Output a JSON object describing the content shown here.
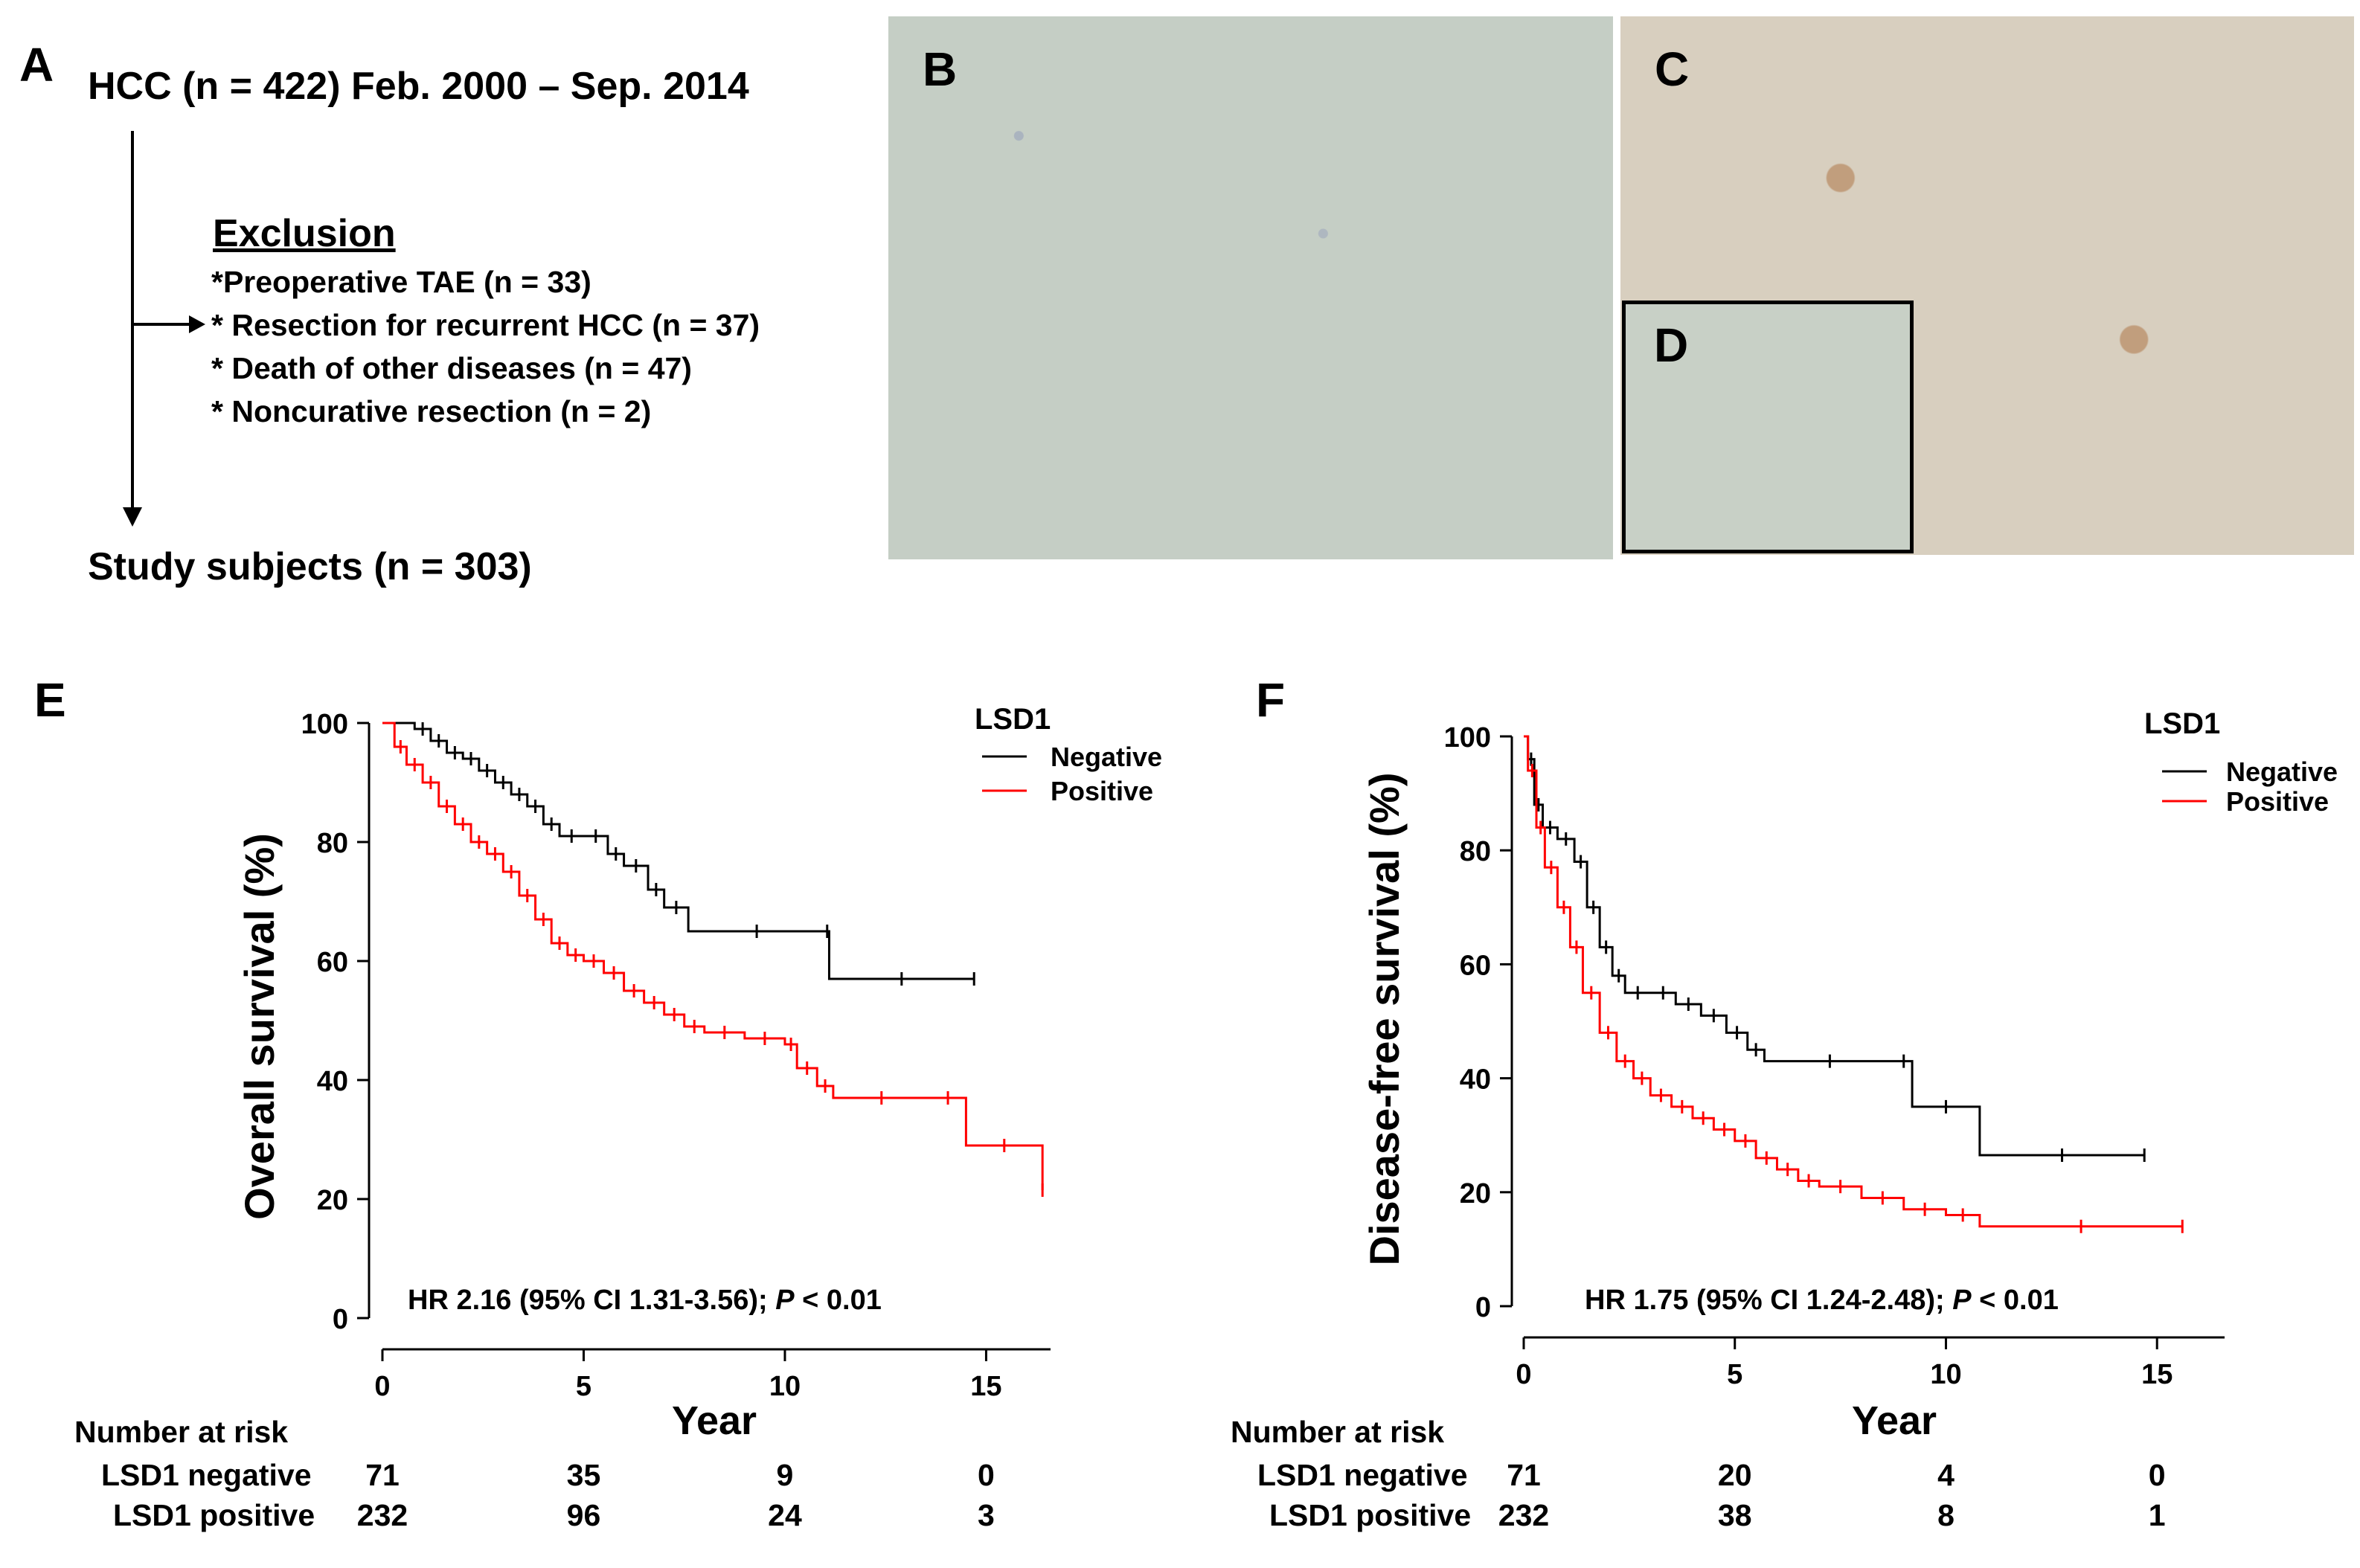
{
  "panel_labels": {
    "a": "A",
    "b": "B",
    "c": "C",
    "d": "D",
    "e": "E",
    "f": "F"
  },
  "flowchart": {
    "top": "HCC (n = 422) Feb. 2000 – Sep. 2014",
    "exclusion_title": "Exclusion",
    "exclusions": [
      "*Preoperative TAE (n = 33)",
      "* Resection for recurrent HCC (n = 37)",
      "* Death of other diseases (n = 47)",
      "* Noncurative resection (n = 2)"
    ],
    "bottom": "Study subjects (n = 303)"
  },
  "colors": {
    "negative": "#000000",
    "positive": "#ff0000"
  },
  "chart_data": [
    {
      "type": "line",
      "id": "E",
      "xlabel": "Year",
      "ylabel": "Overall survival (%)",
      "xlim": [
        0,
        16.6
      ],
      "ylim": [
        0,
        100
      ],
      "xticks": [
        "0",
        "5",
        "10",
        "15"
      ],
      "yticks": [
        "0",
        "20",
        "40",
        "60",
        "80",
        "100"
      ],
      "legend_title": "LSD1",
      "annotation_prefix": "HR 2.16 (95% CI 1.31-3.56); ",
      "annotation_p": "P",
      "annotation_suffix": " < 0.01",
      "series": [
        {
          "name": "Negative",
          "color": "#000000",
          "x": [
            0,
            0.8,
            1.2,
            1.6,
            2,
            2.4,
            2.8,
            3.2,
            3.6,
            4,
            4.4,
            5,
            5.6,
            6,
            6.6,
            7,
            7.6,
            11,
            11.1,
            14.7
          ],
          "y": [
            100,
            99,
            97,
            95,
            94,
            92,
            90,
            88,
            86,
            83,
            81,
            81,
            78,
            76,
            72,
            69,
            65,
            65,
            57,
            57
          ]
        },
        {
          "name": "Positive",
          "color": "#ff0000",
          "x": [
            0,
            0.3,
            0.6,
            1,
            1.4,
            1.8,
            2.2,
            2.6,
            3,
            3.4,
            3.8,
            4.2,
            4.6,
            5,
            5.5,
            6,
            6.5,
            7,
            7.5,
            8,
            9,
            10,
            10.3,
            10.8,
            11.2,
            13.6,
            14.5,
            16.4
          ],
          "y": [
            100,
            96,
            93,
            90,
            86,
            83,
            80,
            78,
            75,
            71,
            67,
            63,
            61,
            60,
            58,
            55,
            53,
            51,
            49,
            48,
            47,
            46,
            42,
            39,
            37,
            37,
            29,
            21.5
          ]
        }
      ],
      "risk_label": "Number at risk",
      "risk_rows": [
        {
          "label": "LSD1 negative",
          "values": [
            "71",
            "35",
            "9",
            "0"
          ]
        },
        {
          "label": "LSD1 positive",
          "values": [
            "232",
            "96",
            "24",
            "3"
          ]
        }
      ]
    },
    {
      "type": "line",
      "id": "F",
      "xlabel": "Year",
      "ylabel": "Disease-free survival (%)",
      "xlim": [
        0,
        16.6
      ],
      "ylim": [
        0,
        100
      ],
      "xticks": [
        "0",
        "5",
        "10",
        "15"
      ],
      "yticks": [
        "0",
        "20",
        "40",
        "60",
        "80",
        "100"
      ],
      "legend_title": "LSD1",
      "annotation_prefix": "HR 1.75 (95% CI 1.24-2.48); ",
      "annotation_p": "P",
      "annotation_suffix": " < 0.01",
      "series": [
        {
          "name": "Negative",
          "color": "#000000",
          "x": [
            0,
            0.1,
            0.25,
            0.45,
            0.8,
            1.2,
            1.5,
            1.8,
            2.1,
            2.4,
            3,
            3.6,
            4.2,
            4.8,
            5.3,
            5.7,
            8.8,
            9.2,
            10.8,
            14.7
          ],
          "y": [
            100,
            96,
            88,
            84,
            82,
            78,
            70,
            63,
            58,
            55,
            55,
            53,
            51,
            48,
            45,
            43,
            43,
            35,
            26.5,
            26.5
          ]
        },
        {
          "name": "Positive",
          "color": "#ff0000",
          "x": [
            0,
            0.1,
            0.3,
            0.5,
            0.8,
            1.1,
            1.4,
            1.8,
            2.2,
            2.6,
            3,
            3.5,
            4,
            4.5,
            5,
            5.5,
            6,
            6.5,
            7,
            8,
            9,
            10,
            10.8,
            15.6
          ],
          "y": [
            100,
            94,
            84,
            77,
            70,
            63,
            55,
            48,
            43,
            40,
            37,
            35,
            33,
            31,
            29,
            26,
            24,
            22,
            21,
            19,
            17,
            16,
            14,
            14
          ]
        }
      ],
      "risk_label": "Number at risk",
      "risk_rows": [
        {
          "label": "LSD1 negative",
          "values": [
            "71",
            "20",
            "4",
            "0"
          ]
        },
        {
          "label": "LSD1 positive",
          "values": [
            "232",
            "38",
            "8",
            "1"
          ]
        }
      ]
    }
  ]
}
